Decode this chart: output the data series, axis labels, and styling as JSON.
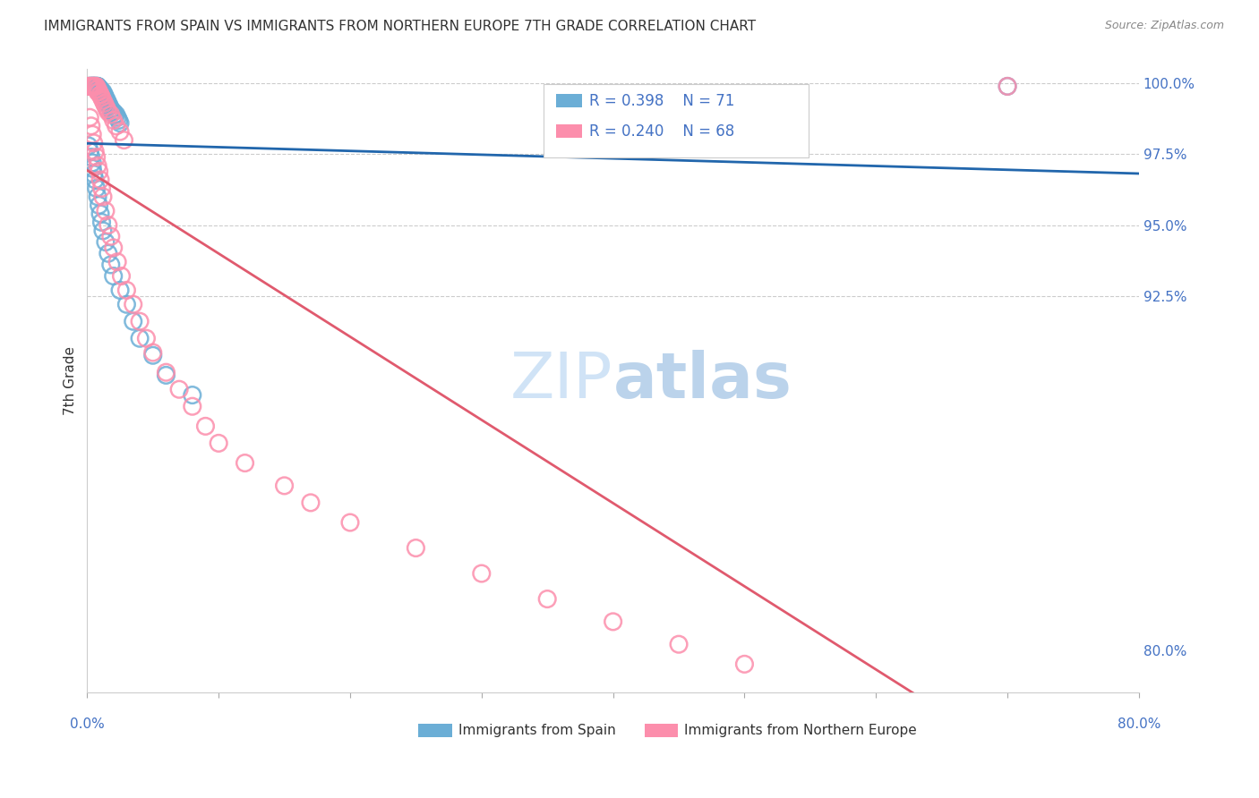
{
  "title": "IMMIGRANTS FROM SPAIN VS IMMIGRANTS FROM NORTHERN EUROPE 7TH GRADE CORRELATION CHART",
  "source": "Source: ZipAtlas.com",
  "ylabel": "7th Grade",
  "ytick_labels": [
    "100.0%",
    "97.5%",
    "95.0%",
    "92.5%",
    "80.0%"
  ],
  "ytick_values": [
    1.0,
    0.975,
    0.95,
    0.925,
    0.8
  ],
  "xlim": [
    0.0,
    0.8
  ],
  "ylim": [
    0.785,
    1.005
  ],
  "legend_r_blue": "R = 0.398",
  "legend_n_blue": "N = 71",
  "legend_r_pink": "R = 0.240",
  "legend_n_pink": "N = 68",
  "blue_color": "#6baed6",
  "pink_color": "#fc8eac",
  "blue_line_color": "#2166ac",
  "pink_line_color": "#e05a6e",
  "blue_x": [
    0.001,
    0.002,
    0.002,
    0.003,
    0.003,
    0.003,
    0.004,
    0.004,
    0.004,
    0.005,
    0.005,
    0.005,
    0.005,
    0.006,
    0.006,
    0.006,
    0.007,
    0.007,
    0.007,
    0.008,
    0.008,
    0.008,
    0.009,
    0.009,
    0.01,
    0.01,
    0.01,
    0.011,
    0.011,
    0.012,
    0.012,
    0.013,
    0.013,
    0.014,
    0.015,
    0.015,
    0.016,
    0.017,
    0.018,
    0.019,
    0.02,
    0.021,
    0.022,
    0.023,
    0.024,
    0.025,
    0.001,
    0.002,
    0.003,
    0.004,
    0.004,
    0.005,
    0.006,
    0.007,
    0.008,
    0.009,
    0.01,
    0.011,
    0.012,
    0.014,
    0.016,
    0.018,
    0.02,
    0.025,
    0.03,
    0.035,
    0.04,
    0.05,
    0.06,
    0.08,
    0.7
  ],
  "blue_y": [
    0.999,
    0.999,
    0.999,
    0.999,
    0.999,
    0.999,
    0.999,
    0.999,
    0.999,
    0.999,
    0.999,
    0.999,
    0.999,
    0.999,
    0.999,
    0.999,
    0.999,
    0.999,
    0.999,
    0.999,
    0.999,
    0.999,
    0.998,
    0.998,
    0.998,
    0.998,
    0.997,
    0.997,
    0.997,
    0.997,
    0.996,
    0.996,
    0.995,
    0.995,
    0.994,
    0.993,
    0.993,
    0.992,
    0.991,
    0.99,
    0.99,
    0.989,
    0.989,
    0.988,
    0.987,
    0.986,
    0.978,
    0.976,
    0.974,
    0.972,
    0.97,
    0.968,
    0.966,
    0.963,
    0.96,
    0.957,
    0.954,
    0.951,
    0.948,
    0.944,
    0.94,
    0.936,
    0.932,
    0.927,
    0.922,
    0.916,
    0.91,
    0.904,
    0.897,
    0.89,
    0.999
  ],
  "pink_x": [
    0.001,
    0.002,
    0.002,
    0.003,
    0.003,
    0.004,
    0.004,
    0.005,
    0.005,
    0.005,
    0.006,
    0.006,
    0.007,
    0.007,
    0.008,
    0.008,
    0.009,
    0.01,
    0.01,
    0.011,
    0.012,
    0.013,
    0.014,
    0.015,
    0.016,
    0.018,
    0.02,
    0.022,
    0.025,
    0.028,
    0.002,
    0.003,
    0.004,
    0.005,
    0.006,
    0.007,
    0.008,
    0.009,
    0.01,
    0.011,
    0.012,
    0.014,
    0.016,
    0.018,
    0.02,
    0.023,
    0.026,
    0.03,
    0.035,
    0.04,
    0.045,
    0.05,
    0.06,
    0.07,
    0.08,
    0.09,
    0.1,
    0.12,
    0.15,
    0.17,
    0.2,
    0.25,
    0.3,
    0.35,
    0.4,
    0.45,
    0.5,
    0.7
  ],
  "pink_y": [
    0.999,
    0.999,
    0.999,
    0.999,
    0.999,
    0.999,
    0.999,
    0.999,
    0.999,
    0.999,
    0.999,
    0.999,
    0.999,
    0.998,
    0.998,
    0.997,
    0.997,
    0.996,
    0.996,
    0.995,
    0.994,
    0.993,
    0.992,
    0.991,
    0.99,
    0.989,
    0.987,
    0.985,
    0.983,
    0.98,
    0.988,
    0.985,
    0.982,
    0.979,
    0.976,
    0.974,
    0.971,
    0.969,
    0.966,
    0.963,
    0.96,
    0.955,
    0.95,
    0.946,
    0.942,
    0.937,
    0.932,
    0.927,
    0.922,
    0.916,
    0.91,
    0.905,
    0.898,
    0.892,
    0.886,
    0.879,
    0.873,
    0.866,
    0.858,
    0.852,
    0.845,
    0.836,
    0.827,
    0.818,
    0.81,
    0.802,
    0.795,
    0.999
  ]
}
